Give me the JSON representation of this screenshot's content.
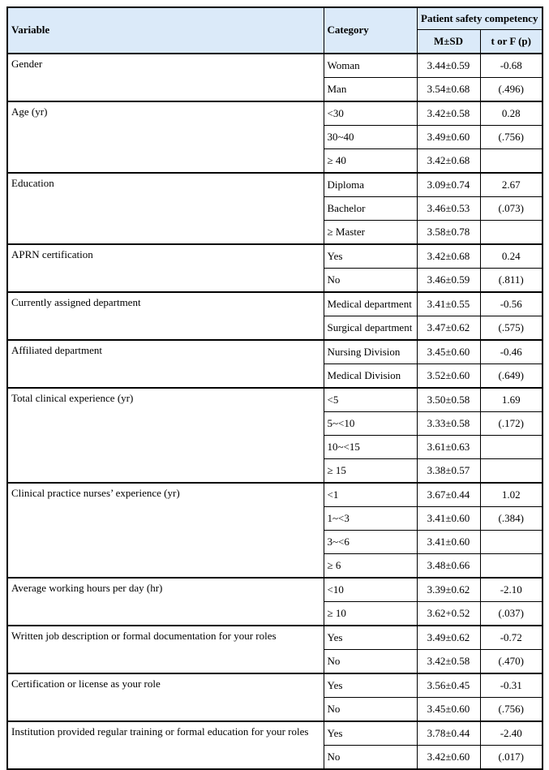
{
  "table": {
    "title_semantic": "patient-safety-competency-differences-table",
    "colors": {
      "header_bg": "#DBEAF9",
      "border": "#000000"
    },
    "header": {
      "variable": "Variable",
      "category": "Category",
      "group": "Patient safety competency",
      "msd": "M±SD",
      "stat": "t or F (p)"
    },
    "groups": [
      {
        "variable": "Gender",
        "rows": [
          {
            "category": "Woman",
            "msd": "3.44±0.59",
            "stat": "-0.68"
          },
          {
            "category": "Man",
            "msd": "3.54±0.68",
            "stat": "(.496)"
          }
        ]
      },
      {
        "variable": "Age (yr)",
        "rows": [
          {
            "category": "<30",
            "msd": "3.42±0.58",
            "stat": "0.28"
          },
          {
            "category": "30~40",
            "msd": "3.49±0.60",
            "stat": "(.756)"
          },
          {
            "category": "≥ 40",
            "msd": "3.42±0.68",
            "stat": ""
          }
        ]
      },
      {
        "variable": "Education",
        "rows": [
          {
            "category": "Diploma",
            "msd": "3.09±0.74",
            "stat": "2.67"
          },
          {
            "category": "Bachelor",
            "msd": "3.46±0.53",
            "stat": "(.073)"
          },
          {
            "category": "≥ Master",
            "msd": "3.58±0.78",
            "stat": ""
          }
        ]
      },
      {
        "variable": "APRN certification",
        "rows": [
          {
            "category": "Yes",
            "msd": "3.42±0.68",
            "stat": "0.24"
          },
          {
            "category": "No",
            "msd": "3.46±0.59",
            "stat": "(.811)"
          }
        ]
      },
      {
        "variable": "Currently assigned department",
        "rows": [
          {
            "category": "Medical department",
            "msd": "3.41±0.55",
            "stat": "-0.56"
          },
          {
            "category": "Surgical department",
            "msd": "3.47±0.62",
            "stat": "(.575)"
          }
        ]
      },
      {
        "variable": "Affiliated department",
        "rows": [
          {
            "category": "Nursing Division",
            "msd": "3.45±0.60",
            "stat": "-0.46"
          },
          {
            "category": "Medical Division",
            "msd": "3.52±0.60",
            "stat": "(.649)"
          }
        ]
      },
      {
        "variable": "Total clinical experience (yr)",
        "rows": [
          {
            "category": "<5",
            "msd": "3.50±0.58",
            "stat": "1.69"
          },
          {
            "category": "5~<10",
            "msd": "3.33±0.58",
            "stat": "(.172)"
          },
          {
            "category": "10~<15",
            "msd": "3.61±0.63",
            "stat": ""
          },
          {
            "category": "≥ 15",
            "msd": "3.38±0.57",
            "stat": ""
          }
        ]
      },
      {
        "variable": "Clinical practice nurses’ experience (yr)",
        "rows": [
          {
            "category": "<1",
            "msd": "3.67±0.44",
            "stat": "1.02"
          },
          {
            "category": "1~<3",
            "msd": "3.41±0.60",
            "stat": "(.384)"
          },
          {
            "category": "3~<6",
            "msd": "3.41±0.60",
            "stat": ""
          },
          {
            "category": "≥ 6",
            "msd": "3.48±0.66",
            "stat": ""
          }
        ]
      },
      {
        "variable": "Average working hours per day (hr)",
        "rows": [
          {
            "category": "<10",
            "msd": "3.39±0.62",
            "stat": "-2.10"
          },
          {
            "category": "≥ 10",
            "msd": "3.62+0.52",
            "stat": "(.037)"
          }
        ]
      },
      {
        "variable": "Written job description or formal documentation for your roles",
        "rows": [
          {
            "category": "Yes",
            "msd": "3.49±0.62",
            "stat": "-0.72"
          },
          {
            "category": "No",
            "msd": "3.42±0.58",
            "stat": "(.470)"
          }
        ]
      },
      {
        "variable": "Certification or license as your role",
        "rows": [
          {
            "category": "Yes",
            "msd": "3.56±0.45",
            "stat": "-0.31"
          },
          {
            "category": "No",
            "msd": "3.45±0.60",
            "stat": "(.756)"
          }
        ]
      },
      {
        "variable": "Institution provided regular training or formal education for your roles",
        "rows": [
          {
            "category": "Yes",
            "msd": "3.78±0.44",
            "stat": "-2.40"
          },
          {
            "category": "No",
            "msd": "3.42±0.60",
            "stat": "(.017)"
          }
        ]
      }
    ]
  }
}
